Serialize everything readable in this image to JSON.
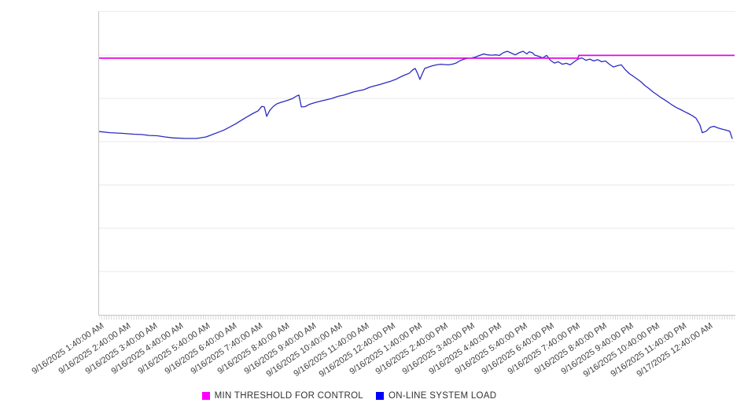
{
  "colors": {
    "background": "#FFFFFF",
    "axis": "#C6C6C6",
    "gridline": "#EAEAEA",
    "top_border": "#ECECEC",
    "minor_tick": "#C9C9C9",
    "x_label_text": "#3F3F3F",
    "legend_text": "#333333"
  },
  "chart_data": {
    "type": "line",
    "title": "",
    "x_axis": {
      "kind": "time",
      "range_hours": [
        1.607,
        25.62
      ],
      "first_tick_hour": 1.667,
      "tick_interval_hours": 1,
      "minor_tick_count": 256,
      "label_rotation_deg": -34,
      "tick_labels": [
        "9/16/2025 1:40:00 AM",
        "9/16/2025 2:40:00 AM",
        "9/16/2025 3:40:00 AM",
        "9/16/2025 4:40:00 AM",
        "9/16/2025 5:40:00 AM",
        "9/16/2025 6:40:00 AM",
        "9/16/2025 7:40:00 AM",
        "9/16/2025 8:40:00 AM",
        "9/16/2025 9:40:00 AM",
        "9/16/2025 10:40:00 AM",
        "9/16/2025 11:40:00 AM",
        "9/16/2025 12:40:00 PM",
        "9/16/2025 1:40:00 PM",
        "9/16/2025 2:40:00 PM",
        "9/16/2025 3:40:00 PM",
        "9/16/2025 4:40:00 PM",
        "9/16/2025 5:40:00 PM",
        "9/16/2025 6:40:00 PM",
        "9/16/2025 7:40:00 PM",
        "9/16/2025 8:40:00 PM",
        "9/16/2025 9:40:00 PM",
        "9/16/2025 10:40:00 PM",
        "9/16/2025 11:40:00 PM",
        "9/17/2025 12:40:00 AM"
      ]
    },
    "y_axis": {
      "labels_visible": false,
      "note": "unlabeled relative scale: 0 = bottom axis, 100 = plot top",
      "range": [
        0,
        100
      ],
      "gridline_divisions": 7
    },
    "series": [
      {
        "name": "MIN THRESHOLD FOR CONTROL",
        "color": "#E208E2",
        "line_width": 1.8,
        "points": [
          [
            1.607,
            84.7
          ],
          [
            19.7,
            84.7
          ],
          [
            19.74,
            85.6
          ],
          [
            25.62,
            85.6
          ]
        ]
      },
      {
        "name": "ON-LINE SYSTEM LOAD",
        "color": "#2B2BC2",
        "line_width": 1.3,
        "points": [
          [
            1.61,
            60.5
          ],
          [
            2.02,
            60.1
          ],
          [
            2.47,
            59.9
          ],
          [
            2.92,
            59.6
          ],
          [
            3.21,
            59.5
          ],
          [
            3.51,
            59.2
          ],
          [
            3.81,
            59.1
          ],
          [
            4.1,
            58.7
          ],
          [
            4.4,
            58.4
          ],
          [
            4.85,
            58.2
          ],
          [
            5.29,
            58.2
          ],
          [
            5.65,
            58.7
          ],
          [
            5.89,
            59.5
          ],
          [
            6.13,
            60.3
          ],
          [
            6.33,
            61.0
          ],
          [
            6.57,
            62.1
          ],
          [
            6.78,
            63.1
          ],
          [
            7.02,
            64.4
          ],
          [
            7.23,
            65.5
          ],
          [
            7.43,
            66.5
          ],
          [
            7.61,
            67.3
          ],
          [
            7.76,
            68.8
          ],
          [
            7.85,
            68.6
          ],
          [
            7.94,
            65.5
          ],
          [
            8.06,
            67.5
          ],
          [
            8.18,
            68.7
          ],
          [
            8.32,
            69.6
          ],
          [
            8.47,
            70.1
          ],
          [
            8.62,
            70.5
          ],
          [
            8.77,
            70.9
          ],
          [
            8.92,
            71.4
          ],
          [
            9.07,
            72.2
          ],
          [
            9.16,
            72.5
          ],
          [
            9.25,
            68.6
          ],
          [
            9.39,
            68.7
          ],
          [
            9.54,
            69.4
          ],
          [
            9.75,
            70.0
          ],
          [
            9.96,
            70.5
          ],
          [
            10.2,
            71.0
          ],
          [
            10.4,
            71.4
          ],
          [
            10.64,
            72.1
          ],
          [
            10.85,
            72.5
          ],
          [
            11.03,
            73.0
          ],
          [
            11.24,
            73.6
          ],
          [
            11.44,
            74.0
          ],
          [
            11.62,
            74.3
          ],
          [
            11.83,
            75.1
          ],
          [
            12.04,
            75.6
          ],
          [
            12.22,
            76.0
          ],
          [
            12.43,
            76.6
          ],
          [
            12.63,
            77.1
          ],
          [
            12.81,
            77.7
          ],
          [
            13.02,
            78.6
          ],
          [
            13.17,
            79.2
          ],
          [
            13.32,
            79.7
          ],
          [
            13.47,
            80.9
          ],
          [
            13.55,
            81.3
          ],
          [
            13.64,
            79.7
          ],
          [
            13.73,
            77.7
          ],
          [
            13.82,
            79.5
          ],
          [
            13.91,
            81.3
          ],
          [
            14.06,
            81.8
          ],
          [
            14.21,
            82.2
          ],
          [
            14.36,
            82.5
          ],
          [
            14.51,
            82.7
          ],
          [
            14.65,
            82.6
          ],
          [
            14.8,
            82.5
          ],
          [
            14.95,
            82.7
          ],
          [
            15.1,
            83.1
          ],
          [
            15.25,
            83.9
          ],
          [
            15.4,
            84.4
          ],
          [
            15.55,
            84.7
          ],
          [
            15.69,
            84.8
          ],
          [
            15.84,
            85.1
          ],
          [
            15.99,
            85.6
          ],
          [
            16.14,
            86.1
          ],
          [
            16.29,
            85.8
          ],
          [
            16.44,
            85.7
          ],
          [
            16.59,
            85.8
          ],
          [
            16.73,
            85.6
          ],
          [
            16.88,
            86.5
          ],
          [
            17.03,
            87.0
          ],
          [
            17.18,
            86.4
          ],
          [
            17.33,
            85.8
          ],
          [
            17.48,
            86.5
          ],
          [
            17.63,
            87.0
          ],
          [
            17.77,
            86.1
          ],
          [
            17.86,
            86.8
          ],
          [
            17.98,
            86.5
          ],
          [
            18.07,
            85.7
          ],
          [
            18.22,
            85.3
          ],
          [
            18.37,
            84.8
          ],
          [
            18.52,
            85.6
          ],
          [
            18.66,
            84.0
          ],
          [
            18.81,
            83.1
          ],
          [
            18.96,
            83.5
          ],
          [
            19.11,
            82.7
          ],
          [
            19.26,
            83.0
          ],
          [
            19.41,
            82.5
          ],
          [
            19.56,
            83.5
          ],
          [
            19.7,
            84.4
          ],
          [
            19.85,
            84.8
          ],
          [
            20.0,
            84.0
          ],
          [
            20.15,
            84.4
          ],
          [
            20.3,
            83.8
          ],
          [
            20.45,
            84.2
          ],
          [
            20.6,
            83.5
          ],
          [
            20.74,
            83.8
          ],
          [
            20.89,
            82.7
          ],
          [
            21.04,
            81.8
          ],
          [
            21.19,
            82.2
          ],
          [
            21.34,
            82.5
          ],
          [
            21.49,
            80.9
          ],
          [
            21.64,
            79.6
          ],
          [
            21.78,
            78.8
          ],
          [
            21.93,
            77.9
          ],
          [
            22.08,
            76.9
          ],
          [
            22.23,
            75.7
          ],
          [
            22.38,
            74.7
          ],
          [
            22.53,
            73.6
          ],
          [
            22.68,
            72.7
          ],
          [
            22.82,
            71.8
          ],
          [
            22.97,
            71.0
          ],
          [
            23.12,
            70.1
          ],
          [
            23.27,
            69.2
          ],
          [
            23.42,
            68.4
          ],
          [
            23.57,
            67.8
          ],
          [
            23.72,
            67.1
          ],
          [
            23.86,
            66.5
          ],
          [
            24.01,
            65.8
          ],
          [
            24.16,
            64.9
          ],
          [
            24.31,
            62.7
          ],
          [
            24.4,
            60.1
          ],
          [
            24.55,
            60.6
          ],
          [
            24.7,
            61.9
          ],
          [
            24.84,
            62.2
          ],
          [
            24.99,
            61.7
          ],
          [
            25.14,
            61.3
          ],
          [
            25.29,
            61.0
          ],
          [
            25.44,
            60.6
          ],
          [
            25.53,
            58.2
          ]
        ]
      }
    ],
    "legend": {
      "position": "bottom",
      "items": [
        {
          "label": "MIN THRESHOLD FOR CONTROL",
          "color": "#FF00FF"
        },
        {
          "label": "ON-LINE SYSTEM LOAD",
          "color": "#0000FF"
        }
      ]
    }
  }
}
